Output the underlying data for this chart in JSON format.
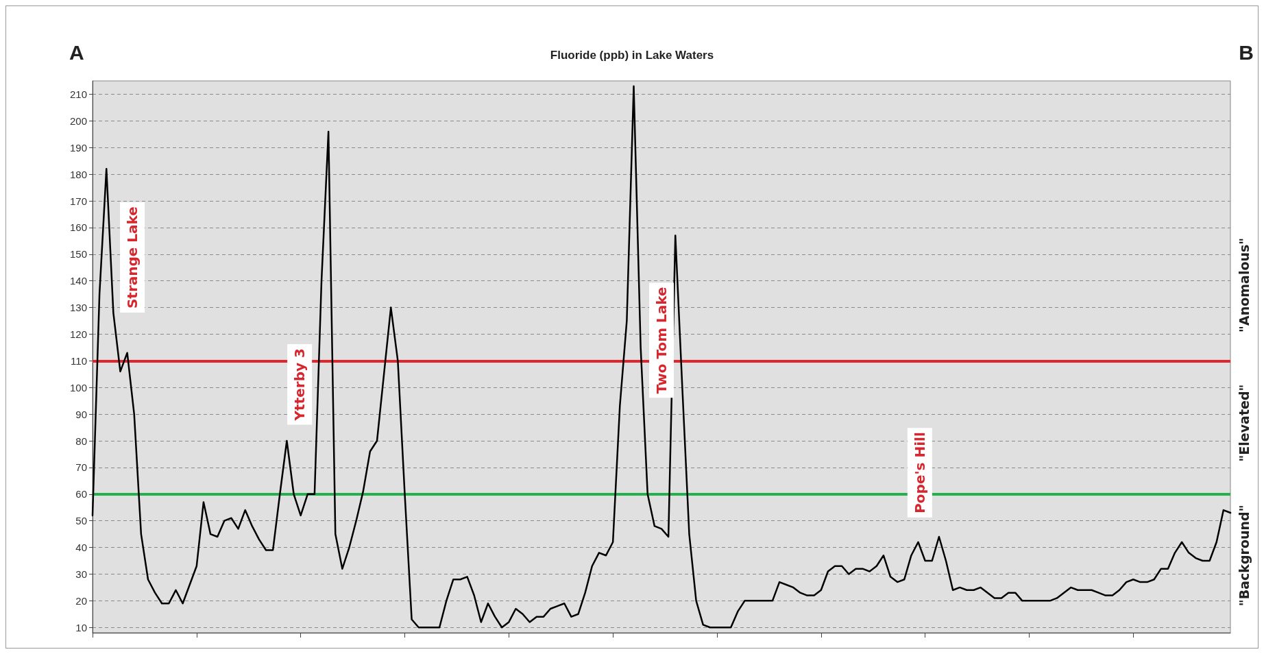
{
  "chart_data": {
    "type": "line",
    "title": "Fluoride (ppb) in Lake Waters",
    "categories": [
      null,
      null,
      null,
      null,
      null,
      null,
      null,
      null,
      null,
      null,
      null,
      null,
      null,
      null,
      null,
      null,
      null,
      null,
      null,
      null,
      null,
      null,
      null,
      null,
      null,
      null,
      null,
      null,
      null,
      null,
      null,
      null,
      null,
      null,
      null,
      null,
      null,
      null,
      null,
      null,
      null,
      null,
      null,
      null,
      null,
      null,
      null,
      null,
      null,
      null,
      null,
      null,
      null,
      null,
      null,
      null,
      null,
      null,
      null,
      null,
      null,
      null,
      null,
      null,
      null,
      null,
      null,
      null,
      null,
      null,
      null,
      null,
      null,
      null,
      null,
      null,
      null,
      null,
      null,
      null,
      null,
      null,
      null,
      null,
      null,
      null,
      null,
      null,
      null,
      null,
      null,
      null,
      null,
      null,
      null,
      null,
      null,
      null,
      null,
      null,
      null,
      null,
      null,
      null,
      null,
      null,
      null,
      null,
      null,
      null,
      null,
      null,
      null,
      null,
      null,
      null,
      null,
      null,
      null,
      null,
      null,
      null,
      null,
      null,
      null,
      null,
      null,
      null,
      null,
      null,
      null,
      null,
      null,
      null,
      null,
      null,
      null,
      null,
      null,
      null,
      null,
      null,
      null,
      null,
      null,
      null,
      null,
      null,
      null,
      null,
      null,
      null,
      null,
      null,
      null,
      null,
      null,
      null,
      null,
      null,
      null,
      null,
      null,
      null,
      null
    ],
    "series": [
      {
        "color": "#000000",
        "values": [
          52,
          135,
          182,
          128,
          106,
          113,
          90,
          45,
          28,
          23,
          19,
          19,
          24,
          19,
          26,
          33,
          57,
          45,
          44,
          50,
          51,
          47,
          54,
          48,
          43,
          39,
          39,
          60,
          80,
          60,
          52,
          60,
          60,
          140,
          196,
          45,
          32,
          40,
          50,
          61,
          76,
          80,
          105,
          130,
          110,
          60,
          13,
          10,
          10,
          10,
          10,
          20,
          28,
          28,
          29,
          22,
          12,
          19,
          14,
          10,
          12,
          17,
          15,
          12,
          14,
          14,
          17,
          18,
          19,
          14,
          15,
          23,
          33,
          38,
          37,
          42,
          93,
          125,
          213,
          115,
          60,
          48,
          47,
          44,
          157,
          100,
          45,
          20,
          11,
          10,
          10,
          10,
          10,
          16,
          20,
          20,
          20,
          20,
          20,
          27,
          26,
          25,
          23,
          22,
          22,
          24,
          31,
          33,
          33,
          30,
          32,
          32,
          31,
          33,
          37,
          29,
          27,
          28,
          37,
          42,
          35,
          35,
          44,
          35,
          24,
          25,
          24,
          24,
          25,
          23,
          21,
          21,
          23,
          23,
          20,
          20,
          20,
          20,
          20,
          21,
          23,
          25,
          24,
          24,
          24,
          23,
          22,
          22,
          24,
          27,
          28,
          27,
          27,
          28,
          32,
          32,
          38,
          42,
          38,
          36,
          35,
          35,
          42,
          54,
          53
        ]
      }
    ],
    "ylim": [
      8,
      215
    ],
    "yticks": [
      10,
      20,
      30,
      40,
      50,
      60,
      70,
      80,
      90,
      100,
      110,
      120,
      130,
      140,
      150,
      160,
      170,
      180,
      190,
      200,
      210
    ],
    "grid": "y",
    "tick_labels": "y",
    "marker": "none",
    "line_style": "solid",
    "ref_lines": [
      {
        "axis": "y",
        "value": 110,
        "color": "#e3242b"
      },
      {
        "axis": "y",
        "value": 60,
        "color": "#22b14c"
      }
    ],
    "annotations": [
      "A",
      "B",
      "Strange Lake",
      "Ytterby 3",
      "Two Tom Lake",
      "Pope's Hill",
      "\"Anomalous\"",
      "\"Elevated\"",
      "\"Background\""
    ]
  }
}
